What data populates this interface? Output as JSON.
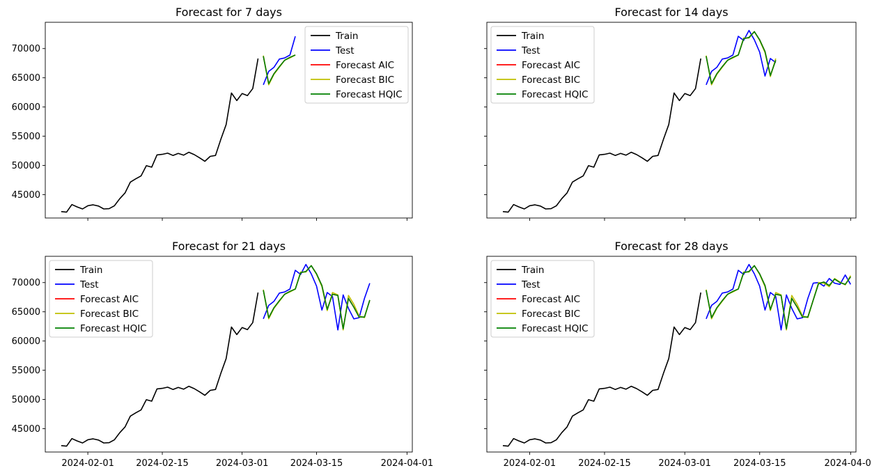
{
  "chart_data": [
    {
      "type": "line",
      "title": "Forecast for 7 days",
      "xlabel": "",
      "ylabel": "",
      "legend_position": "top-right",
      "show_x_tick_labels": false,
      "show_y_tick_labels": true,
      "series": [
        {
          "name": "Train",
          "color": "#000000"
        },
        {
          "name": "Test",
          "color": "#0000ff"
        },
        {
          "name": "Forecast AIC",
          "color": "#ff0000"
        },
        {
          "name": "Forecast BIC",
          "color": "#bfbf00"
        },
        {
          "name": "Forecast HQIC",
          "color": "#008000"
        }
      ],
      "horizon": 7
    },
    {
      "type": "line",
      "title": "Forecast for 14 days",
      "xlabel": "",
      "ylabel": "",
      "legend_position": "top-left",
      "show_x_tick_labels": false,
      "show_y_tick_labels": false,
      "series": [
        {
          "name": "Train",
          "color": "#000000"
        },
        {
          "name": "Test",
          "color": "#0000ff"
        },
        {
          "name": "Forecast AIC",
          "color": "#ff0000"
        },
        {
          "name": "Forecast BIC",
          "color": "#bfbf00"
        },
        {
          "name": "Forecast HQIC",
          "color": "#008000"
        }
      ],
      "horizon": 14
    },
    {
      "type": "line",
      "title": "Forecast for 21 days",
      "xlabel": "",
      "ylabel": "",
      "legend_position": "top-left",
      "show_x_tick_labels": true,
      "show_y_tick_labels": true,
      "series": [
        {
          "name": "Train",
          "color": "#000000"
        },
        {
          "name": "Test",
          "color": "#0000ff"
        },
        {
          "name": "Forecast AIC",
          "color": "#ff0000"
        },
        {
          "name": "Forecast BIC",
          "color": "#bfbf00"
        },
        {
          "name": "Forecast HQIC",
          "color": "#008000"
        }
      ],
      "horizon": 21
    },
    {
      "type": "line",
      "title": "Forecast for 28 days",
      "xlabel": "",
      "ylabel": "",
      "legend_position": "top-left",
      "show_x_tick_labels": true,
      "show_y_tick_labels": false,
      "series": [
        {
          "name": "Train",
          "color": "#000000"
        },
        {
          "name": "Test",
          "color": "#0000ff"
        },
        {
          "name": "Forecast AIC",
          "color": "#ff0000"
        },
        {
          "name": "Forecast BIC",
          "color": "#bfbf00"
        },
        {
          "name": "Forecast HQIC",
          "color": "#008000"
        }
      ],
      "horizon": 28
    }
  ],
  "shared": {
    "xlim": [
      "2024-01-24",
      "2024-04-02"
    ],
    "ylim": [
      41000,
      74500
    ],
    "x_ticks": [
      "2024-02-01",
      "2024-02-15",
      "2024-03-01",
      "2024-03-15",
      "2024-04-01"
    ],
    "y_ticks": [
      45000,
      50000,
      55000,
      60000,
      65000,
      70000
    ],
    "train": {
      "start": "2024-01-27",
      "values": [
        42100,
        42000,
        43300,
        42900,
        42550,
        43100,
        43250,
        43050,
        42550,
        42600,
        43100,
        44300,
        45300,
        47150,
        47700,
        48200,
        49950,
        49700,
        51800,
        51900,
        52100,
        51700,
        52050,
        51750,
        52250,
        51850,
        51300,
        50700,
        51550,
        51700,
        54450,
        57000,
        62400,
        61100,
        62300,
        61950,
        63150,
        68300
      ]
    },
    "test": {
      "start": "2024-03-05",
      "values": [
        63800,
        66100,
        66800,
        68200,
        68400,
        68900,
        72100,
        71400,
        73100,
        71500,
        69400,
        65300,
        68300,
        67600,
        61900,
        67900,
        65600,
        63800,
        64000,
        67300,
        69900,
        70000,
        69400,
        70700,
        69900,
        69700,
        71300,
        69700
      ]
    },
    "forecast_aic": {
      "start": "2024-03-05",
      "values": [
        68700,
        64000,
        65700,
        66900,
        68000,
        68500,
        68900,
        71700,
        71900,
        72900,
        71500,
        69500,
        65400,
        68000,
        67800,
        62100,
        67300,
        65800,
        64100,
        64100,
        67000,
        69800,
        70100,
        69500,
        70600,
        70000,
        69700,
        71000
      ]
    },
    "forecast_bic": {
      "start": "2024-03-05",
      "values": [
        68800,
        63800,
        65600,
        66800,
        68000,
        68400,
        68900,
        71800,
        71800,
        72900,
        71400,
        69300,
        65200,
        68300,
        67900,
        61900,
        67800,
        66300,
        64300,
        64000,
        67000,
        70000,
        69900,
        69300,
        70700,
        70100,
        69600,
        71200
      ]
    },
    "forecast_hqic": {
      "start": "2024-03-05",
      "values": [
        68700,
        64000,
        65700,
        66900,
        68000,
        68500,
        68900,
        71700,
        71900,
        72900,
        71500,
        69500,
        65400,
        68000,
        67800,
        62100,
        67300,
        65800,
        64100,
        64100,
        67000,
        69800,
        70100,
        69500,
        70600,
        70000,
        69700,
        71000
      ]
    }
  }
}
